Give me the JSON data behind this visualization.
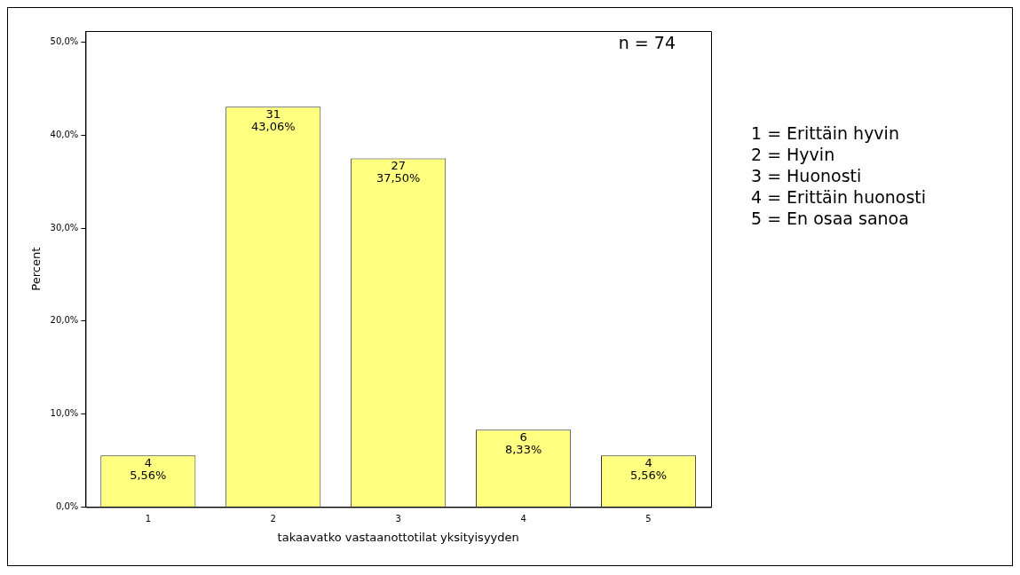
{
  "chart_data": {
    "type": "bar",
    "xlabel": "takaavatko vastaanottotilat yksityisyyden",
    "ylabel": "Percent",
    "categories": [
      "1",
      "2",
      "3",
      "4",
      "5"
    ],
    "values": [
      5.56,
      43.06,
      37.5,
      8.33,
      5.56
    ],
    "value_labels": [
      "4\n5,56%",
      "31\n43,06%",
      "27\n37,50%",
      "6\n8,33%",
      "4\n5,56%"
    ],
    "color": "#ffff80",
    "ylim": [
      0,
      51.2
    ],
    "yticks": [
      {
        "value": 0,
        "label": "0,0%"
      },
      {
        "value": 10,
        "label": "10,0%"
      },
      {
        "value": 20,
        "label": "20,0%"
      },
      {
        "value": 30,
        "label": "30,0%"
      },
      {
        "value": 40,
        "label": "40,0%"
      },
      {
        "value": 50,
        "label": "50,0%"
      }
    ],
    "grid": false,
    "legend": false,
    "annotations": [
      "n = 74",
      "1 = Erittäin hyvin",
      "2 = Hyvin",
      "3 = Huonosti",
      "4 = Erittäin huonosti",
      "5 = En osaa sanoa"
    ]
  }
}
